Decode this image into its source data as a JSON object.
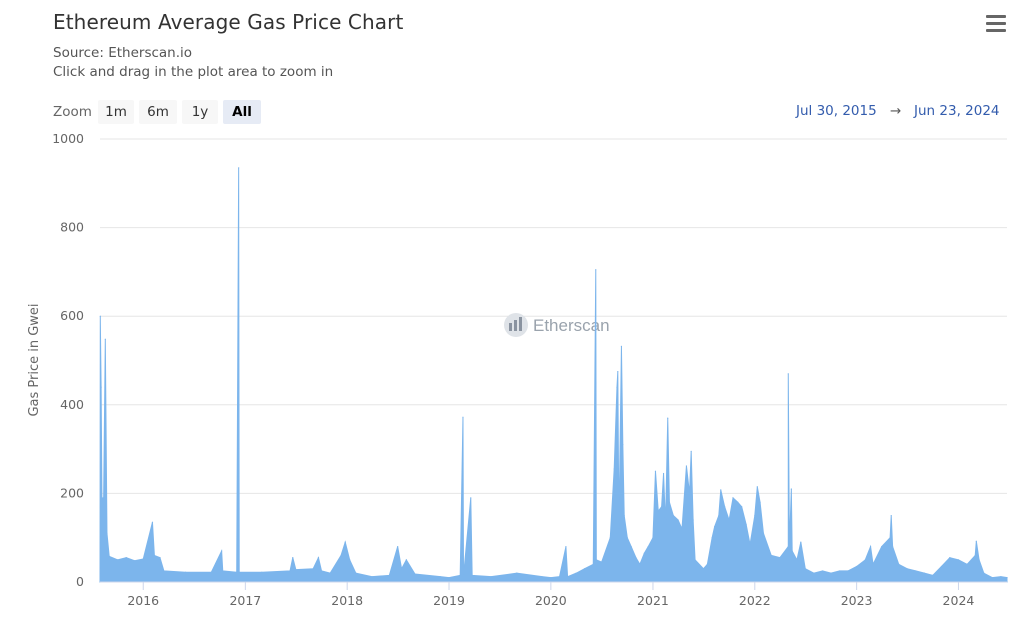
{
  "header": {
    "title": "Ethereum Average Gas Price Chart",
    "source": "Source: Etherscan.io",
    "hint": "Click and drag in the plot area to zoom in",
    "menu_icon": "hamburger-menu-icon"
  },
  "zoom": {
    "label": "Zoom",
    "buttons": [
      "1m",
      "6m",
      "1y",
      "All"
    ],
    "selected": "All"
  },
  "range": {
    "from": "Jul 30, 2015",
    "arrow": "→",
    "to": "Jun 23, 2024"
  },
  "watermark": {
    "text": "Etherscan",
    "icon": "etherscan-logo-icon"
  },
  "colors": {
    "series": "#7cb5ec",
    "grid": "#e6e6e6",
    "accent": "#335cad"
  },
  "chart_data": {
    "type": "area",
    "title": "Ethereum Average Gas Price Chart",
    "ylabel": "Gas Price in Gwei",
    "xlabel": "",
    "ylim": [
      0,
      1000
    ],
    "yticks": [
      0,
      200,
      400,
      600,
      800,
      1000
    ],
    "xticks": [
      "2016",
      "2017",
      "2018",
      "2019",
      "2020",
      "2021",
      "2022",
      "2023",
      "2024"
    ],
    "x_range": [
      "2015-07-30",
      "2024-06-23"
    ],
    "grid": true,
    "legend": "none",
    "series": [
      {
        "name": "",
        "points": [
          [
            "2015-07-30",
            0
          ],
          [
            "2015-07-31",
            600
          ],
          [
            "2015-08-03",
            440
          ],
          [
            "2015-08-06",
            190
          ],
          [
            "2015-08-12",
            190
          ],
          [
            "2015-08-18",
            548
          ],
          [
            "2015-08-24",
            110
          ],
          [
            "2015-09-01",
            58
          ],
          [
            "2015-10-01",
            50
          ],
          [
            "2015-11-01",
            55
          ],
          [
            "2015-12-01",
            48
          ],
          [
            "2016-01-01",
            52
          ],
          [
            "2016-02-03",
            135
          ],
          [
            "2016-02-10",
            60
          ],
          [
            "2016-03-01",
            55
          ],
          [
            "2016-03-15",
            25
          ],
          [
            "2016-06-01",
            22
          ],
          [
            "2016-09-01",
            22
          ],
          [
            "2016-10-08",
            70
          ],
          [
            "2016-10-12",
            25
          ],
          [
            "2016-12-01",
            22
          ],
          [
            "2016-12-08",
            935
          ],
          [
            "2016-12-10",
            22
          ],
          [
            "2017-03-01",
            22
          ],
          [
            "2017-06-10",
            25
          ],
          [
            "2017-06-20",
            55
          ],
          [
            "2017-07-01",
            28
          ],
          [
            "2017-09-01",
            30
          ],
          [
            "2017-09-20",
            55
          ],
          [
            "2017-10-01",
            25
          ],
          [
            "2017-11-01",
            20
          ],
          [
            "2017-12-10",
            60
          ],
          [
            "2017-12-25",
            90
          ],
          [
            "2018-01-10",
            50
          ],
          [
            "2018-02-01",
            20
          ],
          [
            "2018-04-01",
            12
          ],
          [
            "2018-06-01",
            15
          ],
          [
            "2018-07-01",
            80
          ],
          [
            "2018-07-15",
            30
          ],
          [
            "2018-08-01",
            50
          ],
          [
            "2018-09-01",
            18
          ],
          [
            "2018-12-01",
            12
          ],
          [
            "2019-01-01",
            10
          ],
          [
            "2019-02-10",
            15
          ],
          [
            "2019-02-20",
            372
          ],
          [
            "2019-02-22",
            15
          ],
          [
            "2019-03-20",
            190
          ],
          [
            "2019-03-25",
            15
          ],
          [
            "2019-06-01",
            12
          ],
          [
            "2019-09-01",
            20
          ],
          [
            "2019-12-01",
            12
          ],
          [
            "2020-01-01",
            10
          ],
          [
            "2020-02-01",
            12
          ],
          [
            "2020-02-24",
            80
          ],
          [
            "2020-03-01",
            12
          ],
          [
            "2020-04-01",
            20
          ],
          [
            "2020-05-01",
            30
          ],
          [
            "2020-06-01",
            40
          ],
          [
            "2020-06-10",
            705
          ],
          [
            "2020-06-12",
            50
          ],
          [
            "2020-07-01",
            45
          ],
          [
            "2020-08-01",
            100
          ],
          [
            "2020-08-15",
            255
          ],
          [
            "2020-08-25",
            440
          ],
          [
            "2020-08-28",
            475
          ],
          [
            "2020-09-01",
            120
          ],
          [
            "2020-09-10",
            532
          ],
          [
            "2020-09-15",
            310
          ],
          [
            "2020-09-20",
            150
          ],
          [
            "2020-10-01",
            100
          ],
          [
            "2020-10-15",
            80
          ],
          [
            "2020-11-01",
            55
          ],
          [
            "2020-11-15",
            40
          ],
          [
            "2020-12-01",
            65
          ],
          [
            "2020-12-15",
            80
          ],
          [
            "2021-01-01",
            100
          ],
          [
            "2021-01-10",
            250
          ],
          [
            "2021-01-20",
            160
          ],
          [
            "2021-02-01",
            170
          ],
          [
            "2021-02-08",
            245
          ],
          [
            "2021-02-15",
            130
          ],
          [
            "2021-02-23",
            370
          ],
          [
            "2021-03-01",
            180
          ],
          [
            "2021-03-15",
            150
          ],
          [
            "2021-04-01",
            140
          ],
          [
            "2021-04-15",
            120
          ],
          [
            "2021-05-01",
            262
          ],
          [
            "2021-05-12",
            200
          ],
          [
            "2021-05-18",
            295
          ],
          [
            "2021-05-25",
            140
          ],
          [
            "2021-06-01",
            50
          ],
          [
            "2021-07-01",
            30
          ],
          [
            "2021-07-15",
            40
          ],
          [
            "2021-08-01",
            100
          ],
          [
            "2021-08-10",
            125
          ],
          [
            "2021-08-25",
            150
          ],
          [
            "2021-09-01",
            208
          ],
          [
            "2021-09-15",
            170
          ],
          [
            "2021-10-01",
            140
          ],
          [
            "2021-10-15",
            190
          ],
          [
            "2021-11-01",
            180
          ],
          [
            "2021-11-15",
            170
          ],
          [
            "2021-12-01",
            130
          ],
          [
            "2021-12-15",
            85
          ],
          [
            "2022-01-01",
            150
          ],
          [
            "2022-01-10",
            215
          ],
          [
            "2022-01-20",
            180
          ],
          [
            "2022-02-01",
            110
          ],
          [
            "2022-03-01",
            60
          ],
          [
            "2022-04-01",
            55
          ],
          [
            "2022-05-01",
            80
          ],
          [
            "2022-05-01",
            470
          ],
          [
            "2022-05-05",
            80
          ],
          [
            "2022-05-12",
            210
          ],
          [
            "2022-05-15",
            70
          ],
          [
            "2022-06-01",
            50
          ],
          [
            "2022-06-15",
            90
          ],
          [
            "2022-07-01",
            30
          ],
          [
            "2022-08-01",
            20
          ],
          [
            "2022-09-01",
            25
          ],
          [
            "2022-10-01",
            20
          ],
          [
            "2022-11-01",
            25
          ],
          [
            "2022-12-01",
            25
          ],
          [
            "2023-01-01",
            35
          ],
          [
            "2023-02-01",
            50
          ],
          [
            "2023-02-20",
            80
          ],
          [
            "2023-03-01",
            40
          ],
          [
            "2023-04-01",
            80
          ],
          [
            "2023-05-01",
            100
          ],
          [
            "2023-05-05",
            150
          ],
          [
            "2023-05-10",
            80
          ],
          [
            "2023-06-01",
            40
          ],
          [
            "2023-07-01",
            30
          ],
          [
            "2023-08-01",
            25
          ],
          [
            "2023-09-01",
            20
          ],
          [
            "2023-10-01",
            15
          ],
          [
            "2023-11-01",
            35
          ],
          [
            "2023-12-01",
            55
          ],
          [
            "2024-01-01",
            50
          ],
          [
            "2024-02-01",
            40
          ],
          [
            "2024-03-01",
            60
          ],
          [
            "2024-03-05",
            92
          ],
          [
            "2024-03-15",
            50
          ],
          [
            "2024-04-01",
            20
          ],
          [
            "2024-05-01",
            10
          ],
          [
            "2024-06-01",
            12
          ],
          [
            "2024-06-23",
            10
          ]
        ]
      }
    ]
  }
}
